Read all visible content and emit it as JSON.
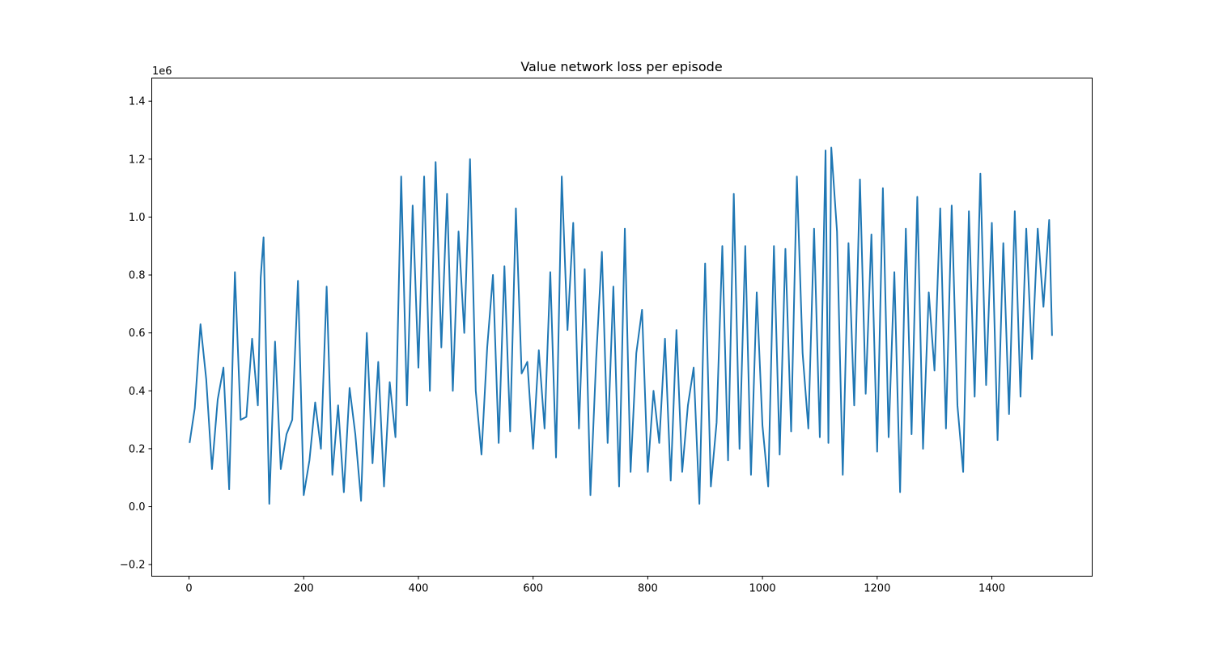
{
  "chart_data": {
    "type": "line",
    "title": "Value network loss per episode",
    "xlabel": "",
    "ylabel": "",
    "y_offset_label": "1e6",
    "xlim": [
      -65,
      1575
    ],
    "ylim": [
      -0.24,
      1.48
    ],
    "x_ticks": [
      0,
      200,
      400,
      600,
      800,
      1000,
      1200,
      1400
    ],
    "x_tick_labels": [
      "0",
      "200",
      "400",
      "600",
      "800",
      "1000",
      "1200",
      "1400"
    ],
    "y_ticks": [
      -0.2,
      0.0,
      0.2,
      0.4,
      0.6,
      0.8,
      1.0,
      1.2,
      1.4
    ],
    "y_tick_labels": [
      "−0.2",
      "0.0",
      "0.2",
      "0.4",
      "0.6",
      "0.8",
      "1.0",
      "1.2",
      "1.4"
    ],
    "grid": false,
    "legend": "none",
    "series": [
      {
        "color": "#1f77b4",
        "x": [
          1,
          10,
          20,
          30,
          40,
          50,
          60,
          70,
          80,
          90,
          100,
          110,
          120,
          125,
          130,
          140,
          150,
          160,
          170,
          180,
          190,
          200,
          210,
          220,
          230,
          240,
          250,
          260,
          270,
          280,
          290,
          300,
          310,
          320,
          330,
          340,
          350,
          360,
          370,
          380,
          390,
          400,
          410,
          420,
          430,
          440,
          450,
          460,
          470,
          480,
          490,
          500,
          510,
          520,
          530,
          540,
          550,
          560,
          570,
          580,
          590,
          600,
          610,
          620,
          630,
          640,
          650,
          660,
          670,
          680,
          690,
          700,
          710,
          720,
          730,
          740,
          750,
          760,
          770,
          780,
          790,
          800,
          810,
          820,
          830,
          840,
          850,
          860,
          870,
          880,
          890,
          900,
          910,
          920,
          930,
          940,
          950,
          960,
          970,
          980,
          990,
          1000,
          1010,
          1020,
          1030,
          1040,
          1050,
          1060,
          1070,
          1080,
          1090,
          1100,
          1110,
          1115,
          1120,
          1130,
          1140,
          1150,
          1160,
          1170,
          1180,
          1190,
          1200,
          1210,
          1220,
          1230,
          1240,
          1250,
          1260,
          1270,
          1280,
          1290,
          1300,
          1310,
          1320,
          1330,
          1340,
          1350,
          1360,
          1370,
          1380,
          1390,
          1400,
          1410,
          1420,
          1430,
          1440,
          1450,
          1460,
          1470,
          1480,
          1490,
          1500,
          1505
        ],
        "values": [
          0.22,
          0.34,
          0.63,
          0.44,
          0.13,
          0.37,
          0.48,
          0.06,
          0.81,
          0.3,
          0.31,
          0.58,
          0.35,
          0.79,
          0.93,
          0.01,
          0.57,
          0.13,
          0.25,
          0.3,
          0.78,
          0.04,
          0.16,
          0.36,
          0.2,
          0.76,
          0.11,
          0.35,
          0.05,
          0.41,
          0.25,
          0.02,
          0.6,
          0.15,
          0.5,
          0.07,
          0.43,
          0.24,
          1.14,
          0.35,
          1.04,
          0.48,
          1.14,
          0.4,
          1.19,
          0.55,
          1.08,
          0.4,
          0.95,
          0.6,
          1.2,
          0.4,
          0.18,
          0.55,
          0.8,
          0.22,
          0.83,
          0.26,
          1.03,
          0.46,
          0.5,
          0.2,
          0.54,
          0.27,
          0.81,
          0.17,
          1.14,
          0.61,
          0.98,
          0.27,
          0.82,
          0.04,
          0.51,
          0.88,
          0.22,
          0.76,
          0.07,
          0.96,
          0.12,
          0.53,
          0.68,
          0.12,
          0.4,
          0.22,
          0.58,
          0.09,
          0.61,
          0.12,
          0.35,
          0.48,
          0.01,
          0.84,
          0.07,
          0.29,
          0.9,
          0.16,
          1.08,
          0.2,
          0.9,
          0.11,
          0.74,
          0.28,
          0.07,
          0.9,
          0.18,
          0.89,
          0.26,
          1.14,
          0.53,
          0.27,
          0.96,
          0.24,
          1.23,
          0.22,
          1.24,
          0.95,
          0.11,
          0.91,
          0.35,
          1.13,
          0.39,
          0.94,
          0.19,
          1.1,
          0.24,
          0.81,
          0.05,
          0.96,
          0.25,
          1.07,
          0.2,
          0.74,
          0.47,
          1.03,
          0.27,
          1.04,
          0.35,
          0.12,
          1.02,
          0.38,
          1.15,
          0.42,
          0.98,
          0.23,
          0.91,
          0.32,
          1.02,
          0.38,
          0.96,
          0.51,
          0.96,
          0.69,
          0.99,
          0.59
        ]
      }
    ]
  }
}
